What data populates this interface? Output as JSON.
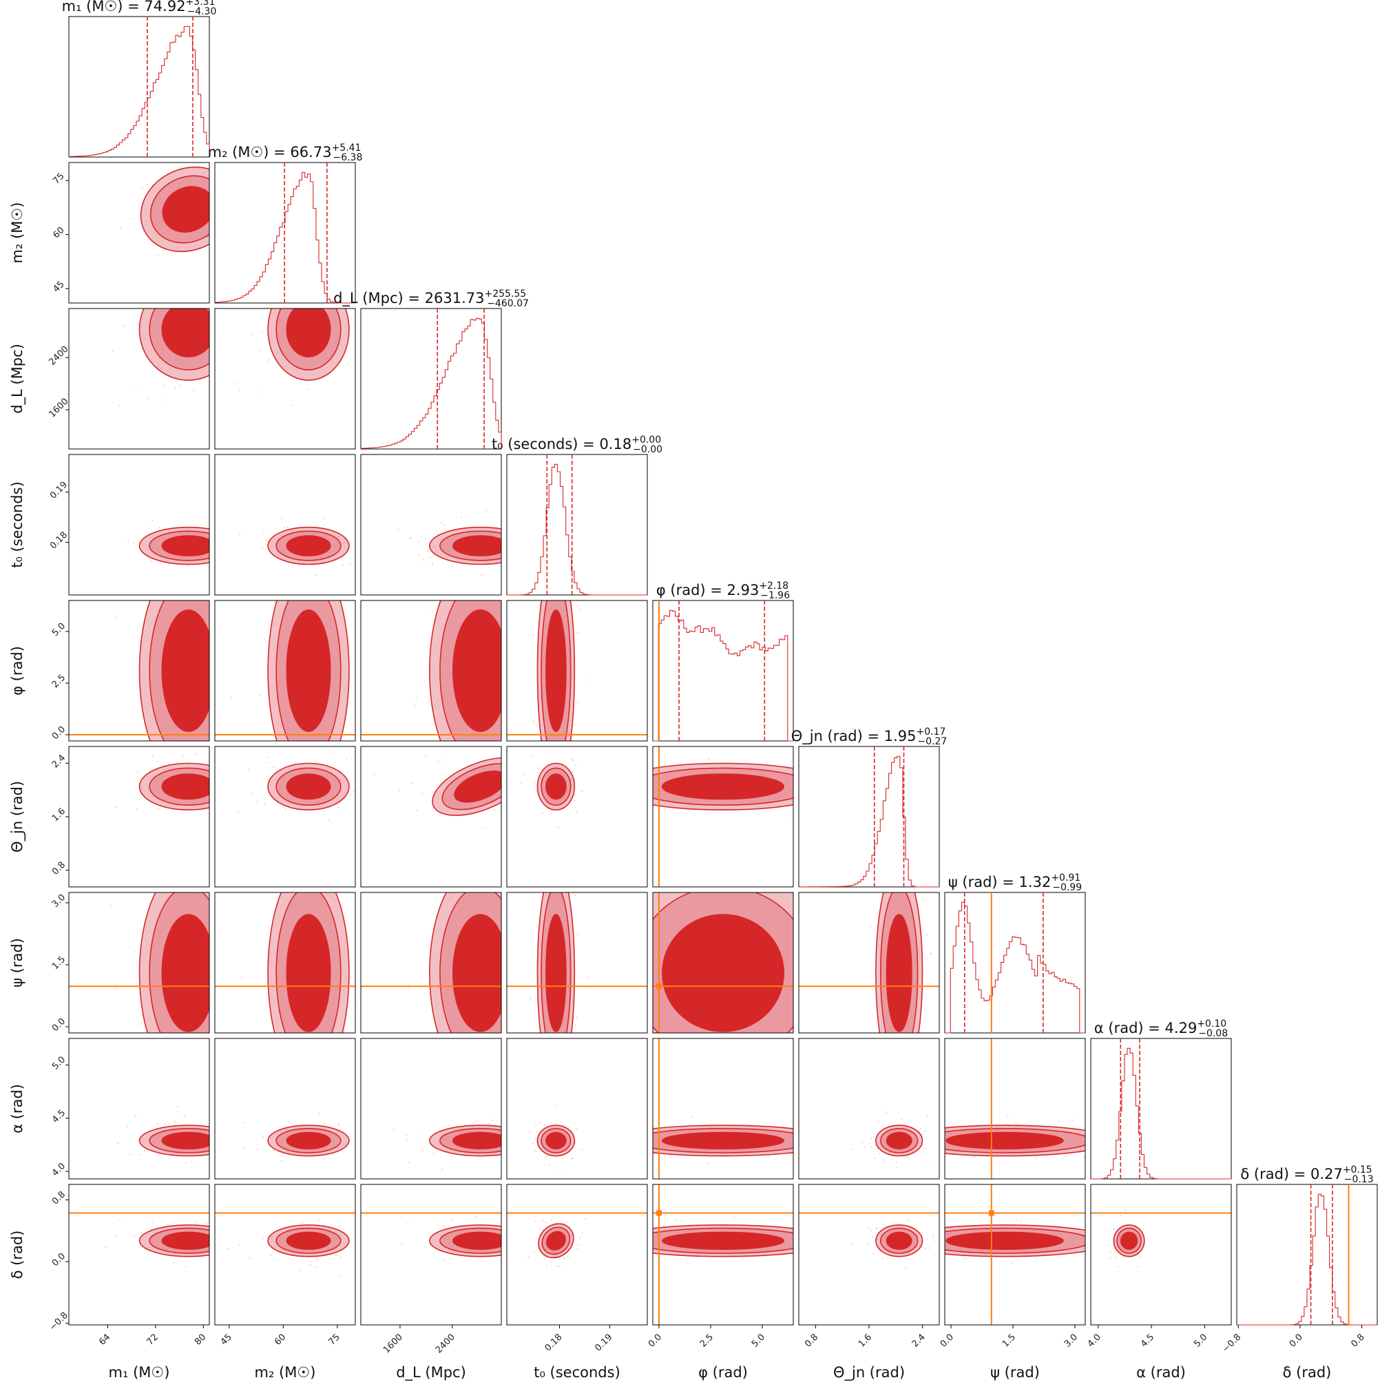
{
  "chart_data": {
    "type": "corner",
    "parameters": [
      {
        "key": "m1",
        "label": "m₁ (M☉)",
        "title": "m₁ (M☉) = 74.92",
        "sup": "+3.31",
        "sub": "−4.30",
        "range": [
          57.5,
          81
        ],
        "ticks": [
          64,
          72,
          80
        ],
        "tick_labels": [
          "64",
          "72",
          "80"
        ],
        "median": 74.92,
        "lo": 70.62,
        "hi": 78.23,
        "peak": 77.5,
        "sd": 4.0,
        "skew": -1,
        "truth": null
      },
      {
        "key": "m2",
        "label": "m₂ (M☉)",
        "title": "m₂ (M☉) = 66.73",
        "sup": "+5.41",
        "sub": "−6.38",
        "range": [
          41,
          80
        ],
        "ticks": [
          45,
          60,
          75
        ],
        "tick_labels": [
          "45",
          "60",
          "75"
        ],
        "median": 66.73,
        "lo": 60.35,
        "hi": 72.14,
        "peak": 67.0,
        "sd": 5.5,
        "skew": -0.5,
        "truth": null
      },
      {
        "key": "dL",
        "label": "d_L (Mpc)",
        "title": "d_L (Mpc) = 2631.73",
        "sup": "+255.55",
        "sub": "−460.07",
        "range": [
          1000,
          3150
        ],
        "ticks": [
          1600,
          2400
        ],
        "tick_labels": [
          "1600",
          "2400"
        ],
        "median": 2631.73,
        "lo": 2171.66,
        "hi": 2887.28,
        "peak": 2830,
        "sd": 380,
        "skew": -1,
        "truth": null
      },
      {
        "key": "t0",
        "label": "t₀ (seconds)",
        "title": "t₀ (seconds) = 0.18",
        "sup": "+0.00",
        "sub": "−0.00",
        "range": [
          0.1695,
          0.1975
        ],
        "ticks": [
          0.18,
          0.19
        ],
        "tick_labels": [
          "0.18",
          "0.19"
        ],
        "median": 0.1795,
        "lo": 0.1775,
        "hi": 0.1825,
        "peak": 0.1793,
        "sd": 0.0018,
        "skew": 0,
        "truth": null
      },
      {
        "key": "phi",
        "label": "φ (rad)",
        "title": "φ (rad) = 2.93",
        "sup": "+2.18",
        "sub": "−1.96",
        "range": [
          -0.3,
          6.5
        ],
        "ticks": [
          0.0,
          2.5,
          5.0
        ],
        "tick_labels": [
          "0.0",
          "2.5",
          "5.0"
        ],
        "median": 2.93,
        "lo": 0.97,
        "hi": 5.11,
        "peak": 3.1,
        "sd": 10,
        "skew": 0,
        "truth": 0.0
      },
      {
        "key": "thetajn",
        "label": "Θ_jn (rad)",
        "title": "Θ_jn (rad) = 1.95",
        "sup": "+0.17",
        "sub": "−0.27",
        "range": [
          0.55,
          2.65
        ],
        "ticks": [
          0.8,
          1.6,
          2.4
        ],
        "tick_labels": [
          "0.8",
          "1.6",
          "2.4"
        ],
        "median": 1.95,
        "lo": 1.68,
        "hi": 2.12,
        "peak": 2.05,
        "sd": 0.17,
        "skew": -1,
        "truth": null
      },
      {
        "key": "psi",
        "label": "ψ (rad)",
        "title": "ψ (rad) = 1.32",
        "sup": "+0.91",
        "sub": "−0.99",
        "range": [
          -0.15,
          3.25
        ],
        "ticks": [
          0.0,
          1.5,
          3.0
        ],
        "tick_labels": [
          "0.0",
          "1.5",
          "3.0"
        ],
        "median": 1.32,
        "lo": 0.33,
        "hi": 2.23,
        "peak": 0.35,
        "sd": 0.6,
        "skew": 0,
        "truth": 0.98
      },
      {
        "key": "alpha",
        "label": "α (rad)",
        "title": "α (rad) = 4.29",
        "sup": "+0.10",
        "sub": "−0.08",
        "range": [
          3.93,
          5.25
        ],
        "ticks": [
          4.0,
          4.5,
          5.0
        ],
        "tick_labels": [
          "4.0",
          "4.5",
          "5.0"
        ],
        "median": 4.29,
        "lo": 4.21,
        "hi": 4.39,
        "peak": 4.29,
        "sd": 0.07,
        "skew": 0,
        "truth": null
      },
      {
        "key": "delta",
        "label": "δ (rad)",
        "title": "δ (rad) = 0.27",
        "sup": "+0.15",
        "sub": "−0.13",
        "range": [
          -0.82,
          1.0
        ],
        "ticks": [
          -0.8,
          0.0,
          0.8
        ],
        "tick_labels": [
          "−0.8",
          "0.0",
          "0.8"
        ],
        "median": 0.27,
        "lo": 0.14,
        "hi": 0.42,
        "peak": 0.27,
        "sd": 0.1,
        "skew": 0,
        "truth": 0.63
      }
    ],
    "colors": {
      "posterior": "#d62728",
      "inner": "#d62728",
      "outer": "#e78c94",
      "truth": "#ff7f0e"
    }
  }
}
